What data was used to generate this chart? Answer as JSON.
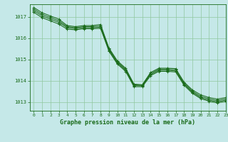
{
  "title": "Graphe pression niveau de la mer (hPa)",
  "background_color": "#c5e8e8",
  "line_color": "#1a6b1a",
  "grid_color": "#90c8a0",
  "xlim": [
    -0.5,
    23
  ],
  "ylim": [
    1012.6,
    1017.6
  ],
  "yticks": [
    1013,
    1014,
    1015,
    1016,
    1017
  ],
  "xticks": [
    0,
    1,
    2,
    3,
    4,
    5,
    6,
    7,
    8,
    9,
    10,
    11,
    12,
    13,
    14,
    15,
    16,
    17,
    18,
    19,
    20,
    21,
    22,
    23
  ],
  "series": [
    [
      1017.45,
      1017.2,
      1017.05,
      1016.9,
      1016.6,
      1016.55,
      1016.6,
      1016.6,
      1016.65,
      1015.55,
      1014.95,
      1014.6,
      1013.85,
      1013.82,
      1014.4,
      1014.6,
      1014.6,
      1014.58,
      1013.95,
      1013.58,
      1013.35,
      1013.22,
      1013.15,
      1013.22
    ],
    [
      1017.38,
      1017.12,
      1016.98,
      1016.82,
      1016.55,
      1016.5,
      1016.55,
      1016.55,
      1016.58,
      1015.5,
      1014.9,
      1014.55,
      1013.82,
      1013.8,
      1014.35,
      1014.55,
      1014.55,
      1014.52,
      1013.9,
      1013.52,
      1013.28,
      1013.16,
      1013.08,
      1013.16
    ],
    [
      1017.3,
      1017.05,
      1016.9,
      1016.75,
      1016.5,
      1016.45,
      1016.5,
      1016.5,
      1016.52,
      1015.45,
      1014.85,
      1014.5,
      1013.78,
      1013.77,
      1014.3,
      1014.5,
      1014.5,
      1014.47,
      1013.85,
      1013.47,
      1013.22,
      1013.1,
      1013.02,
      1013.1
    ],
    [
      1017.22,
      1016.97,
      1016.82,
      1016.67,
      1016.43,
      1016.4,
      1016.45,
      1016.45,
      1016.47,
      1015.4,
      1014.8,
      1014.45,
      1013.73,
      1013.73,
      1014.25,
      1014.45,
      1014.45,
      1014.42,
      1013.8,
      1013.42,
      1013.17,
      1013.05,
      1012.97,
      1013.05
    ]
  ]
}
